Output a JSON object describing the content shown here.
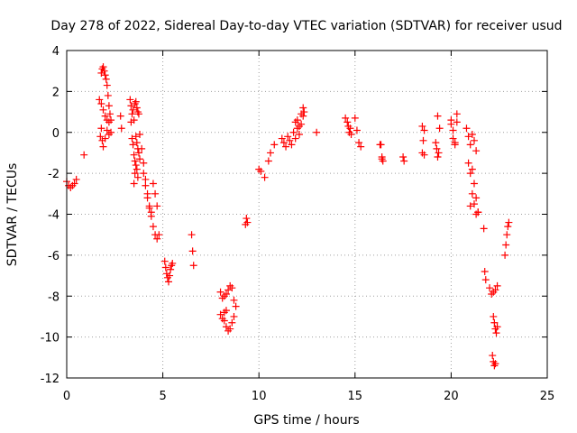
{
  "chart_data": {
    "type": "scatter",
    "title": "Day 278 of 2022, Sidereal Day-to-day VTEC variation (SDTVAR) for receiver usud",
    "xlabel": "GPS time / hours",
    "ylabel": "SDTVAR / TECUs",
    "xlim": [
      0,
      25
    ],
    "ylim": [
      -12,
      4
    ],
    "grid": true,
    "marker": "+",
    "color": "#ff0000",
    "xticks": [
      0,
      5,
      10,
      15,
      20,
      25
    ],
    "yticks": [
      -12,
      -10,
      -8,
      -6,
      -4,
      -2,
      0,
      2,
      4
    ],
    "series": [
      {
        "name": "SDTVAR",
        "x": [
          0.0,
          0.1,
          0.2,
          0.3,
          0.4,
          0.5,
          0.9,
          1.7,
          1.8,
          1.85,
          1.9,
          1.95,
          2.0,
          2.05,
          2.1,
          2.15,
          2.2,
          2.25,
          2.3,
          1.75,
          1.8,
          1.85,
          1.9,
          2.0,
          2.1,
          2.2,
          2.3,
          1.8,
          1.9,
          2.0,
          2.1,
          2.2,
          2.8,
          2.85,
          3.3,
          3.35,
          3.4,
          3.45,
          3.5,
          3.55,
          3.6,
          3.65,
          3.7,
          3.75,
          3.35,
          3.4,
          3.45,
          3.5,
          3.55,
          3.6,
          3.65,
          3.7,
          3.75,
          3.8,
          3.5,
          3.55,
          3.6,
          3.65,
          3.7,
          3.8,
          3.9,
          4.0,
          4.1,
          4.2,
          4.3,
          4.4,
          4.5,
          4.6,
          4.7,
          4.8,
          4.0,
          4.1,
          4.2,
          4.3,
          4.4,
          4.5,
          4.6,
          4.7,
          5.1,
          5.15,
          5.2,
          5.25,
          5.3,
          5.35,
          5.4,
          5.45,
          5.5,
          6.5,
          6.55,
          6.6,
          8.0,
          8.1,
          8.2,
          8.3,
          8.4,
          8.5,
          8.6,
          8.7,
          8.8,
          8.2,
          8.3,
          8.4,
          8.5,
          8.6,
          8.7,
          8.0,
          8.1,
          8.2,
          8.3,
          9.3,
          9.35,
          9.4,
          10.0,
          10.1,
          10.3,
          10.5,
          10.6,
          10.8,
          11.2,
          11.3,
          11.4,
          11.5,
          11.6,
          11.7,
          11.8,
          11.9,
          12.0,
          12.1,
          12.2,
          12.3,
          12.35,
          11.9,
          12.0,
          12.1,
          12.2,
          12.3,
          13.0,
          14.5,
          14.6,
          14.65,
          14.7,
          14.75,
          14.8,
          15.0,
          15.1,
          15.2,
          15.3,
          16.3,
          16.35,
          16.4,
          16.45,
          16.4,
          17.5,
          17.55,
          18.5,
          18.55,
          18.6,
          18.5,
          18.6,
          19.2,
          19.3,
          19.4,
          19.25,
          19.35,
          19.3,
          20.0,
          20.1,
          20.2,
          20.3,
          20.0,
          20.1,
          20.2,
          20.3,
          20.8,
          20.9,
          21.0,
          21.1,
          21.2,
          21.3,
          20.9,
          21.0,
          21.1,
          21.2,
          21.3,
          21.4,
          21.0,
          21.1,
          21.2,
          21.3,
          21.4,
          21.7,
          21.75,
          21.8,
          22.0,
          22.1,
          22.2,
          22.3,
          22.4,
          22.2,
          22.25,
          22.3,
          22.35,
          22.4,
          22.15,
          22.2,
          22.25,
          22.3,
          22.8,
          22.85,
          22.9,
          22.95,
          23.0
        ],
        "y": [
          -2.4,
          -2.6,
          -2.7,
          -2.6,
          -2.5,
          -2.3,
          -1.1,
          1.6,
          2.9,
          3.1,
          3.2,
          3.0,
          2.8,
          2.6,
          2.3,
          1.8,
          1.3,
          0.9,
          0.6,
          -0.2,
          0.2,
          -0.4,
          -0.7,
          -0.3,
          0.1,
          -0.1,
          0.0,
          1.4,
          1.1,
          0.8,
          0.6,
          0.5,
          0.8,
          0.2,
          1.6,
          1.3,
          0.9,
          1.1,
          0.6,
          1.4,
          1.5,
          1.2,
          1.0,
          0.9,
          0.5,
          -0.3,
          -0.6,
          -1.1,
          -1.4,
          -0.2,
          -0.5,
          -0.8,
          -1.0,
          -1.3,
          -2.5,
          -2.0,
          -1.6,
          -1.8,
          -2.2,
          -0.1,
          -0.8,
          -1.5,
          -2.3,
          -3.0,
          -3.6,
          -4.1,
          -4.6,
          -5.0,
          -5.2,
          -5.0,
          -2.0,
          -2.6,
          -3.2,
          -3.7,
          -3.9,
          -2.5,
          -3.0,
          -3.6,
          -6.3,
          -6.6,
          -6.9,
          -7.1,
          -7.3,
          -7.0,
          -6.7,
          -6.5,
          -6.4,
          -5.0,
          -5.8,
          -6.5,
          -7.8,
          -8.1,
          -8.0,
          -7.9,
          -7.7,
          -7.5,
          -7.6,
          -8.2,
          -8.5,
          -9.2,
          -9.5,
          -9.7,
          -9.6,
          -9.3,
          -9.0,
          -8.9,
          -9.1,
          -8.8,
          -8.7,
          -4.5,
          -4.2,
          -4.4,
          -1.8,
          -1.9,
          -2.2,
          -1.4,
          -1.0,
          -0.6,
          -0.3,
          -0.5,
          -0.7,
          -0.2,
          -0.4,
          -0.6,
          0.0,
          -0.3,
          0.6,
          0.3,
          0.9,
          1.2,
          1.0,
          0.5,
          0.2,
          -0.1,
          0.4,
          0.8,
          0.0,
          0.7,
          0.5,
          0.3,
          0.0,
          0.2,
          -0.1,
          0.7,
          0.1,
          -0.5,
          -0.7,
          -0.6,
          -0.6,
          -1.2,
          -1.4,
          -1.3,
          -1.2,
          -1.4,
          0.3,
          -0.4,
          -1.1,
          -1.0,
          0.1,
          -0.5,
          -1.2,
          0.2,
          -0.8,
          -1.0,
          0.8,
          0.6,
          0.1,
          -0.5,
          0.9,
          0.4,
          -0.3,
          -0.6,
          0.5,
          0.2,
          -0.2,
          -0.6,
          -0.1,
          -0.4,
          -0.9,
          -1.5,
          -2.0,
          -1.8,
          -2.5,
          -3.2,
          -3.9,
          -3.6,
          -3.0,
          -3.5,
          -4.0,
          -3.9,
          -4.7,
          -6.8,
          -7.2,
          -7.6,
          -7.9,
          -7.8,
          -7.7,
          -7.5,
          -9.0,
          -9.3,
          -9.6,
          -9.8,
          -9.5,
          -10.9,
          -11.2,
          -11.4,
          -11.3,
          -6.0,
          -5.5,
          -5.0,
          -4.6,
          -4.4
        ]
      }
    ]
  }
}
